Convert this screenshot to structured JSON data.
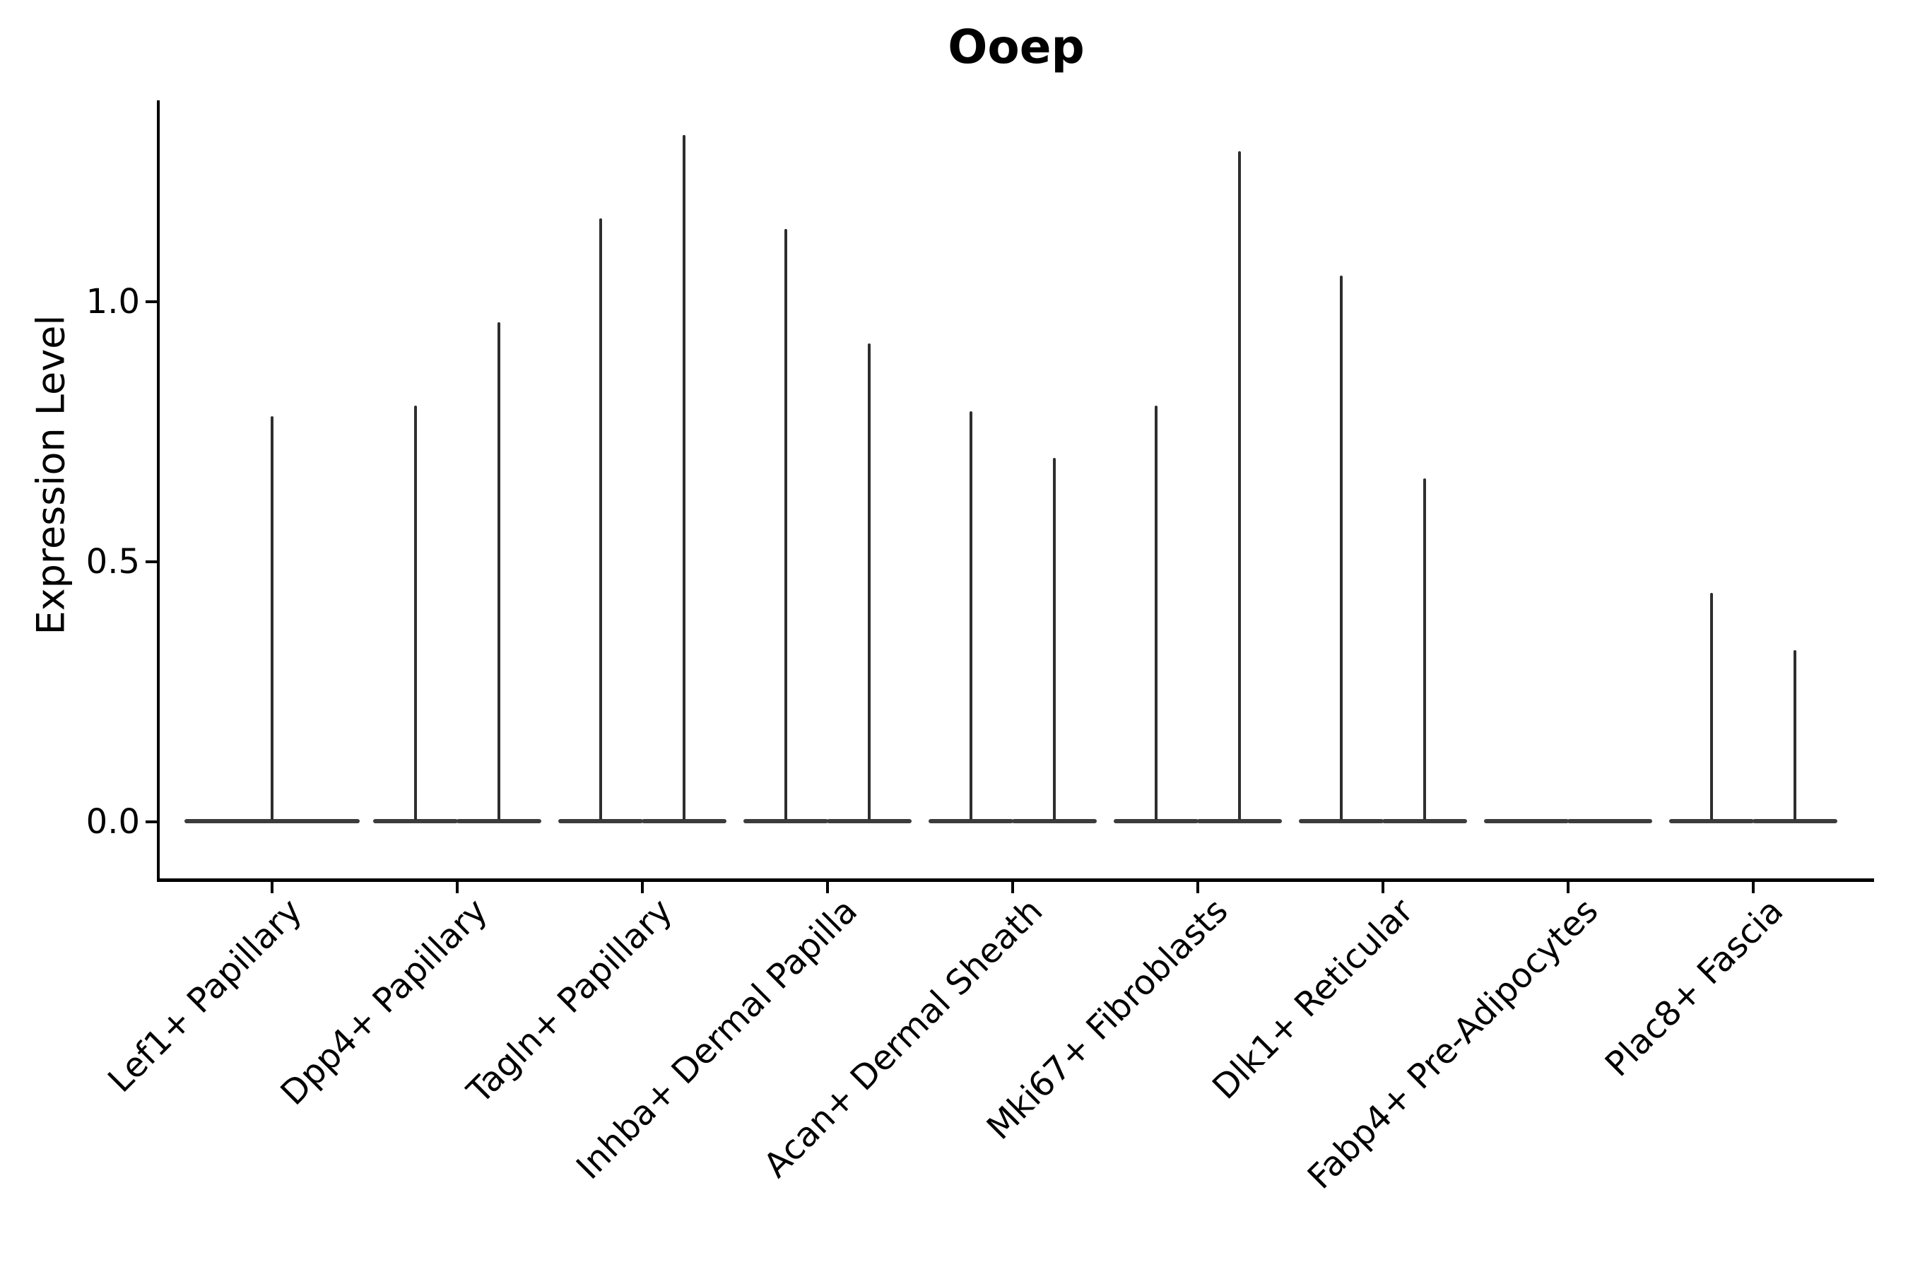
{
  "chart_data": {
    "type": "violin",
    "title": "Ooep",
    "xlabel": "",
    "ylabel": "Expression Level",
    "ytick_labels": [
      "0.0",
      "0.5",
      "1.0"
    ],
    "ytick_values": [
      0.0,
      0.5,
      1.0
    ],
    "ylim": [
      -0.11,
      1.39
    ],
    "grid": false,
    "legend": "none",
    "violin_color": "#2e2e2e",
    "axis_color": "#000000",
    "shape_note": "Each violin's bulk (wide flat lens) sits at expression 0 with a thin vertical tail rising to its max value; categories after the first show two adjacent violins.",
    "categories": [
      "Lef1+ Papillary",
      "Dpp4+ Papillary",
      "Tagln+ Papillary",
      "Inhba+ Dermal Papilla",
      "Acan+ Dermal Sheath",
      "Mki67+ Fibroblasts",
      "Dlk1+ Reticular",
      "Fabp4+ Pre-Adipocytes",
      "Plac8+ Fascia"
    ],
    "series": [
      {
        "name": "Lef1+ Papillary",
        "violin_max_values": [
          0.78
        ]
      },
      {
        "name": "Dpp4+ Papillary",
        "violin_max_values": [
          0.8,
          0.96
        ]
      },
      {
        "name": "Tagln+ Papillary",
        "violin_max_values": [
          1.16,
          1.32
        ]
      },
      {
        "name": "Inhba+ Dermal Papilla",
        "violin_max_values": [
          1.14,
          0.92
        ]
      },
      {
        "name": "Acan+ Dermal Sheath",
        "violin_max_values": [
          0.79,
          0.7
        ]
      },
      {
        "name": "Mki67+ Fibroblasts",
        "violin_max_values": [
          0.8,
          1.29
        ]
      },
      {
        "name": "Dlk1+ Reticular",
        "violin_max_values": [
          1.05,
          0.66
        ]
      },
      {
        "name": "Fabp4+ Pre-Adipocytes",
        "violin_max_values": [
          0.0,
          0.0
        ]
      },
      {
        "name": "Plac8+ Fascia",
        "violin_max_values": [
          0.44,
          0.33
        ]
      }
    ]
  }
}
